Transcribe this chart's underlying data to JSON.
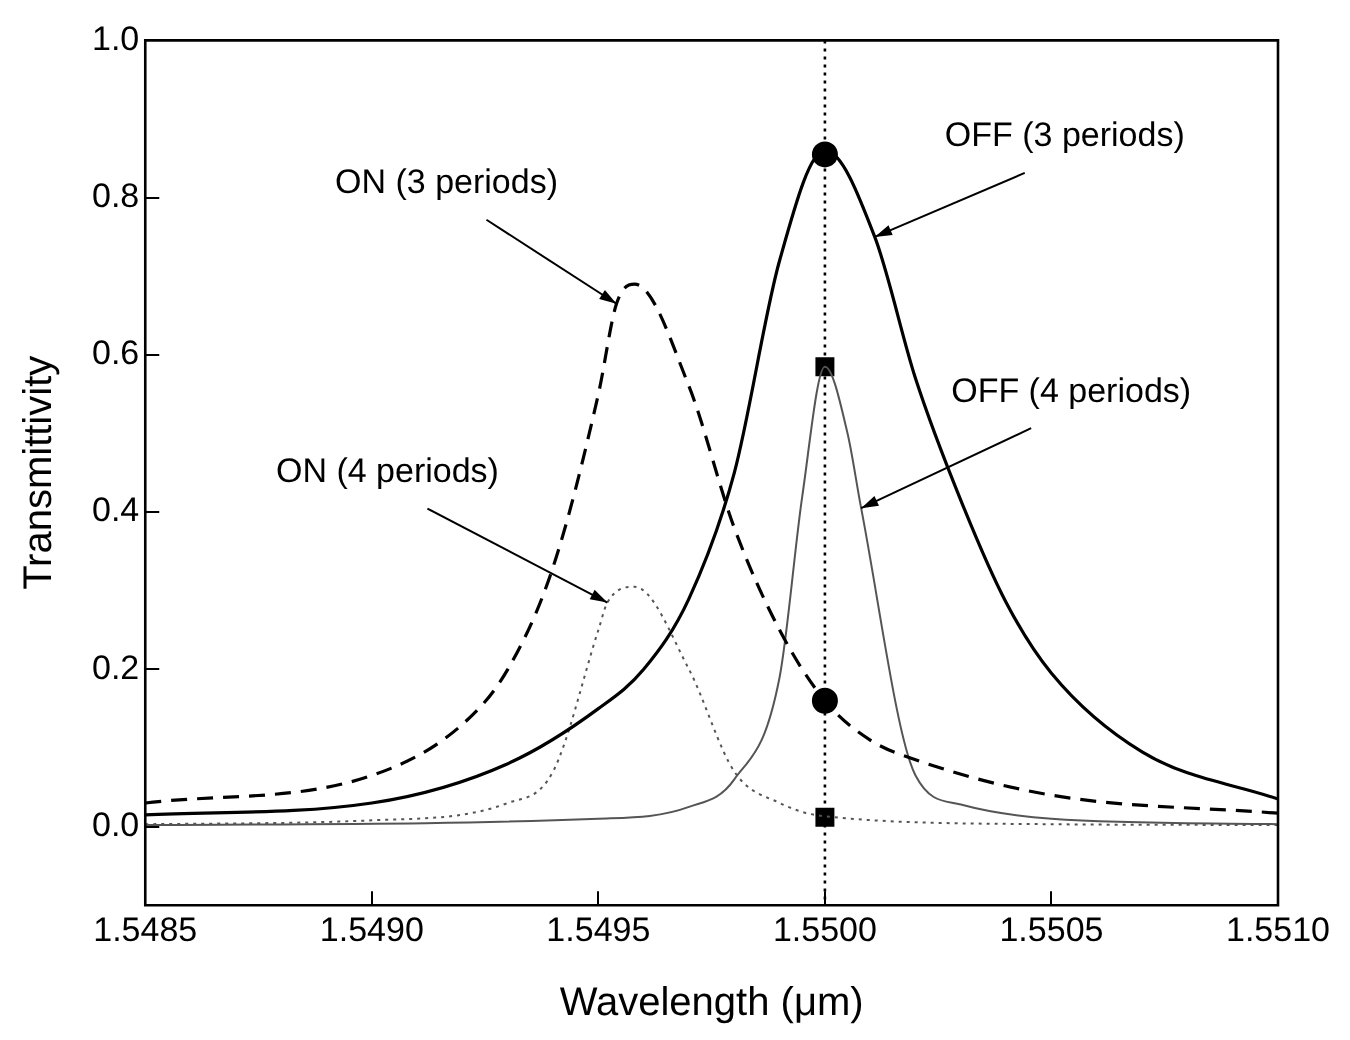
{
  "chart_data": {
    "type": "line",
    "xlabel": "Wavelength (μm)",
    "ylabel": "Transmittivity",
    "xlim": [
      1.5485,
      1.551
    ],
    "ylim": [
      -0.1,
      1.0
    ],
    "xticks": [
      1.5485,
      {
        "value": 1.549,
        "label": "1.5490"
      },
      1.5495,
      {
        "value": 1.55,
        "label": "1.5500"
      },
      1.5505,
      {
        "value": 1.551,
        "label": "1.5510"
      }
    ],
    "yticks": [
      {
        "value": 0,
        "label": "0.0"
      },
      0.2,
      0.4,
      0.6,
      0.8,
      {
        "value": 1,
        "label": "1.0"
      }
    ],
    "grid": false,
    "legend": false,
    "marker": "none",
    "series": [
      {
        "line_style": "solid",
        "color": "#000000",
        "x": [
          1.5485,
          1.549,
          1.5493,
          1.5495,
          1.5496,
          1.5497,
          1.5498,
          1.5499,
          1.55,
          1.55011,
          1.5502,
          1.5503,
          1.5504,
          1.5505,
          1.5507,
          1.551
        ],
        "values": [
          0.015,
          0.03,
          0.08,
          0.15,
          0.2,
          0.29,
          0.45,
          0.72,
          0.86,
          0.75,
          0.57,
          0.415,
          0.285,
          0.195,
          0.095,
          0.035
        ]
      },
      {
        "line_style": "dashed",
        "color": "#000000",
        "x": [
          1.5485,
          1.549,
          1.5492,
          1.5493,
          1.5494,
          1.5495,
          1.54954,
          1.54958,
          1.5497,
          1.5498,
          1.5499,
          1.55,
          1.5501,
          1.5502,
          1.5505,
          1.551
        ],
        "values": [
          0.03,
          0.065,
          0.13,
          0.2,
          0.33,
          0.55,
          0.665,
          0.69,
          0.56,
          0.38,
          0.25,
          0.16,
          0.11,
          0.085,
          0.04,
          0.017
        ]
      },
      {
        "line_style": "dotted",
        "color": "#555555",
        "x": [
          1.5485,
          1.549,
          1.5493,
          1.5494,
          1.5495,
          1.54952,
          1.54958,
          1.5497,
          1.5498,
          1.5499,
          1.55,
          1.5505,
          1.551
        ],
        "values": [
          0.003,
          0.008,
          0.03,
          0.07,
          0.25,
          0.285,
          0.305,
          0.2,
          0.07,
          0.03,
          0.013,
          0.003,
          0.002
        ]
      },
      {
        "line_style": "solid",
        "color": "#555555",
        "x": [
          1.5485,
          1.5495,
          1.5497,
          1.5498,
          1.5499,
          1.54995,
          1.55,
          1.55005,
          1.55008,
          1.5502,
          1.5503,
          1.5505,
          1.551
        ],
        "values": [
          0.002,
          0.01,
          0.025,
          0.06,
          0.19,
          0.42,
          0.585,
          0.5,
          0.405,
          0.065,
          0.028,
          0.01,
          0.003
        ]
      },
      {
        "type": "scatter",
        "marker": "circle",
        "color": "#000000",
        "x": [
          1.55,
          1.55
        ],
        "values": [
          0.855,
          0.16
        ]
      },
      {
        "type": "scatter",
        "marker": "square",
        "color": "#000000",
        "x": [
          1.55,
          1.55
        ],
        "values": [
          0.585,
          0.012
        ]
      }
    ],
    "ref_lines": [
      {
        "axis": "x",
        "value": 1.55,
        "line_style": "dotted",
        "color": "#000000"
      }
    ],
    "annotations": [
      {
        "text": "ON (3 periods)",
        "x": 1.54954,
        "y": 0.665
      },
      {
        "text": "OFF (3 periods)",
        "x": 1.55011,
        "y": 0.75
      },
      {
        "text": "OFF (4 periods)",
        "x": 1.55008,
        "y": 0.405
      },
      {
        "text": "ON (4 periods)",
        "x": 1.54952,
        "y": 0.285
      }
    ]
  }
}
